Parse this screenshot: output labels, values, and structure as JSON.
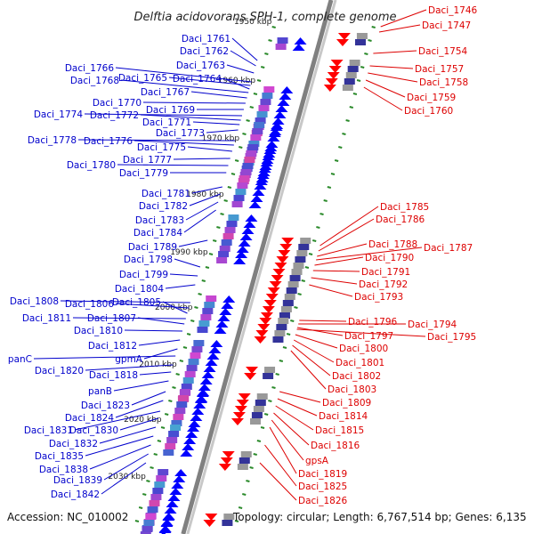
{
  "title": "Delftia acidovorans SPH-1, complete genome",
  "footer": {
    "accession": "Accession: NC_010002",
    "topology": "Topology: circular; Length: 6,767,514 bp; Genes: 6,135"
  },
  "colors": {
    "left_label": "#0000cc",
    "right_label": "#dd0000",
    "backbone_dark": "#808080",
    "backbone_light": "#c8c8c8",
    "tick": "#2b8a2b",
    "forward_gene": "#0000ff",
    "reverse_gene": "#ff0000"
  },
  "scale_labels": [
    "1950 kbp",
    "1960 kbp",
    "1970 kbp",
    "1980 kbp",
    "1990 kbp",
    "2000 kbp",
    "2010 kbp",
    "2020 kbp",
    "2030 kbp"
  ],
  "left_genes": [
    "Daci_1761",
    "Daci_1762",
    "Daci_1763",
    "Daci_1766",
    "Daci_1765",
    "Daci_1764",
    "Daci_1768",
    "Daci_1767",
    "Daci_1770",
    "Daci_1769",
    "Daci_1774",
    "Daci_1772",
    "Daci_1771",
    "Daci_1773",
    "Daci_1778",
    "Daci_1776",
    "Daci_1775",
    "Daci_1777",
    "Daci_1780",
    "Daci_1779",
    "Daci_1781",
    "Daci_1782",
    "Daci_1783",
    "Daci_1784",
    "Daci_1789",
    "Daci_1798",
    "Daci_1799",
    "Daci_1804",
    "Daci_1808",
    "Daci_1806",
    "Daci_1805",
    "Daci_1811",
    "Daci_1807",
    "Daci_1810",
    "Daci_1812",
    "gpmA",
    "panC",
    "Daci_1820",
    "Daci_1818",
    "panB",
    "Daci_1823",
    "Daci_1824",
    "Daci_1831",
    "Daci_1830",
    "Daci_1832",
    "Daci_1835",
    "Daci_1838",
    "Daci_1839",
    "Daci_1842"
  ],
  "right_genes": [
    "Daci_1746",
    "Daci_1747",
    "Daci_1754",
    "Daci_1757",
    "Daci_1758",
    "Daci_1759",
    "Daci_1760",
    "Daci_1785",
    "Daci_1786",
    "Daci_1788",
    "Daci_1787",
    "Daci_1790",
    "Daci_1791",
    "Daci_1792",
    "Daci_1793",
    "Daci_1796",
    "Daci_1794",
    "Daci_1797",
    "Daci_1795",
    "Daci_1800",
    "Daci_1801",
    "Daci_1802",
    "Daci_1803",
    "Daci_1809",
    "Daci_1814",
    "Daci_1815",
    "Daci_1816",
    "gpsA",
    "Daci_1819",
    "Daci_1825",
    "Daci_1826"
  ]
}
